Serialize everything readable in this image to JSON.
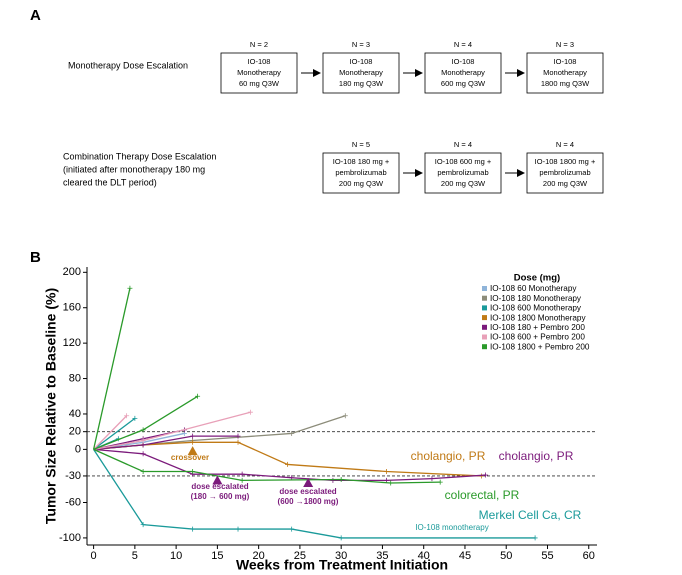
{
  "panel_a": {
    "label": "A",
    "rows": [
      {
        "title": [
          "Monotherapy Dose Escalation"
        ],
        "steps": [
          {
            "n": "N = 2",
            "lines": [
              "IO-108",
              "Monotherapy",
              "60 mg Q3W"
            ]
          },
          {
            "n": "N = 3",
            "lines": [
              "IO-108",
              "Monotherapy",
              "180 mg Q3W"
            ]
          },
          {
            "n": "N = 4",
            "lines": [
              "IO-108",
              "Monotherapy",
              "600 mg Q3W"
            ]
          },
          {
            "n": "N = 3",
            "lines": [
              "IO-108",
              "Monotherapy",
              "1800 mg Q3W"
            ]
          }
        ]
      },
      {
        "title": [
          "Combination Therapy Dose Escalation",
          "(initiated after monotherapy 180 mg",
          "cleared the DLT period)"
        ],
        "steps": [
          {
            "n": "N = 5",
            "lines": [
              "IO-108 180 mg +",
              "pembrolizumab",
              "200 mg Q3W"
            ]
          },
          {
            "n": "N = 4",
            "lines": [
              "IO-108 600 mg +",
              "pembrolizumab",
              "200 mg Q3W"
            ]
          },
          {
            "n": "N = 4",
            "lines": [
              "IO-108 1800 mg +",
              "pembrolizumab",
              "200 mg Q3W"
            ]
          }
        ]
      }
    ]
  },
  "chart_data": {
    "type": "spider",
    "panel_label": "B",
    "xlabel": "Weeks from Treatment Initiation",
    "ylabel": "Tumor Size Relative to Baseline (%)",
    "xlim": [
      -0.8,
      61
    ],
    "ylim": [
      -108,
      206
    ],
    "xticks": [
      0,
      5,
      10,
      15,
      20,
      25,
      30,
      35,
      40,
      45,
      50,
      55,
      60
    ],
    "yticks": [
      200,
      160,
      120,
      80,
      40,
      20,
      0,
      -30,
      -60,
      -100
    ],
    "reference_lines": [
      20,
      -30
    ],
    "legend": {
      "title": "Dose (mg)",
      "position": "upper right",
      "entries": [
        {
          "name": "IO-108 60 Monotherapy",
          "color": "#8fb4d9"
        },
        {
          "name": "IO-108 180 Monotherapy",
          "color": "#8c8c7a"
        },
        {
          "name": "IO-108 600 Monotherapy",
          "color": "#1a9a9a"
        },
        {
          "name": "IO-108 1800 Monotherapy",
          "color": "#c07a16"
        },
        {
          "name": "IO-108 180 + Pembro 200",
          "color": "#7b1a7b"
        },
        {
          "name": "IO-108 600 + Pembro 200",
          "color": "#e8a0b8"
        },
        {
          "name": "IO-108 1800 + Pembro 200",
          "color": "#2a9a2a"
        }
      ]
    },
    "series": [
      {
        "color": "#8fb4d9",
        "x": [
          0,
          6,
          11
        ],
        "values": [
          0,
          8,
          18
        ]
      },
      {
        "color": "#8c8c7a",
        "x": [
          0,
          6,
          12,
          24,
          30.5
        ],
        "values": [
          0,
          5,
          10,
          18,
          38
        ]
      },
      {
        "color": "#1a9a9a",
        "x": [
          0,
          6,
          12,
          17.5,
          24,
          30,
          53.5
        ],
        "values": [
          0,
          -85,
          -90,
          -90,
          -90,
          -100,
          -100
        ]
      },
      {
        "color": "#1a9a9a",
        "x": [
          0,
          5
        ],
        "values": [
          0,
          35
        ]
      },
      {
        "color": "#1a9a9a",
        "x": [
          0,
          3
        ],
        "values": [
          0,
          12
        ]
      },
      {
        "color": "#c07a16",
        "x": [
          0,
          6,
          12,
          17.5,
          23.5,
          35.5,
          47
        ],
        "values": [
          0,
          5,
          8,
          8,
          -17,
          -25,
          -30
        ]
      },
      {
        "color": "#7b1a7b",
        "x": [
          0,
          6,
          12,
          18,
          24,
          29,
          35.5,
          41,
          47.5
        ],
        "values": [
          0,
          -5,
          -28,
          -28,
          -32,
          -35,
          -35,
          -33,
          -29
        ]
      },
      {
        "color": "#7b1a7b",
        "x": [
          0,
          6,
          11
        ],
        "values": [
          0,
          12,
          22
        ]
      },
      {
        "color": "#7b1a7b",
        "x": [
          0,
          6,
          12,
          17.5
        ],
        "values": [
          0,
          5,
          15,
          15
        ]
      },
      {
        "color": "#e8a0b8",
        "x": [
          0,
          4
        ],
        "values": [
          0,
          38
        ]
      },
      {
        "color": "#e8a0b8",
        "x": [
          0,
          6,
          19
        ],
        "values": [
          0,
          10,
          42
        ]
      },
      {
        "color": "#2a9a2a",
        "x": [
          0,
          4.4
        ],
        "values": [
          0,
          182
        ]
      },
      {
        "color": "#2a9a2a",
        "x": [
          0,
          6,
          12.6
        ],
        "values": [
          0,
          22,
          60
        ]
      },
      {
        "color": "#2a9a2a",
        "x": [
          0,
          6,
          12,
          18,
          30,
          36,
          42
        ],
        "values": [
          0,
          -25,
          -25,
          -35,
          -34,
          -38,
          -37
        ]
      }
    ],
    "markers": [
      {
        "x": 12,
        "y": -2,
        "color": "#c07a16"
      },
      {
        "x": 15,
        "y": -35,
        "color": "#7b1a7b"
      },
      {
        "x": 26,
        "y": -38,
        "color": "#7b1a7b"
      }
    ],
    "annotations": [
      {
        "lines": [
          "crossover"
        ],
        "color": "#c07a16"
      },
      {
        "lines": [
          "dose escalated",
          "(180 → 600 mg)"
        ],
        "color": "#7b1a7b"
      },
      {
        "lines": [
          "dose escalated",
          "(600 →1800 mg)"
        ],
        "color": "#7b1a7b"
      },
      {
        "lines": [
          "cholangio, PR"
        ],
        "color": "#c07a16"
      },
      {
        "lines": [
          "cholangio, PR"
        ],
        "color": "#7b1a7b"
      },
      {
        "lines": [
          "colorectal, PR"
        ],
        "color": "#2a9a2a"
      },
      {
        "lines": [
          "Merkel Cell Ca, CR"
        ],
        "color": "#1a9a9a"
      },
      {
        "lines": [
          "IO-108 monotherapy"
        ],
        "color": "#1a9a9a"
      }
    ]
  }
}
